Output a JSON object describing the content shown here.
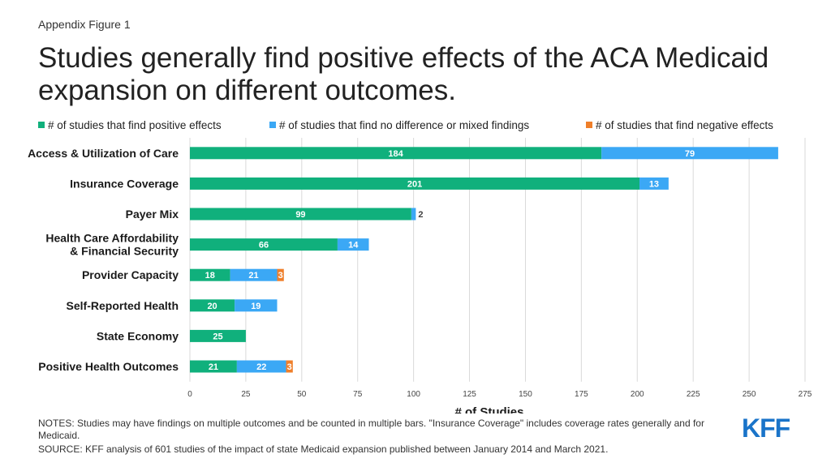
{
  "header": {
    "figure_label": "Appendix Figure 1",
    "title": "Studies generally find positive effects of the ACA Medicaid expansion on different outcomes."
  },
  "footer": {
    "notes": "NOTES: Studies may have findings on multiple outcomes and be counted in multiple bars. \"Insurance  Coverage\" includes coverage rates generally and for Medicaid.",
    "source": "SOURCE: KFF analysis of 601 studies of the impact of state Medicaid expansion published between January 2014 and March 2021.",
    "logo_text": "KFF"
  },
  "colors": {
    "positive": "#10b07c",
    "mixed": "#3ba8f5",
    "negative": "#ef7f2a",
    "grid": "#d9d9d9",
    "logo": "#1a74c9"
  },
  "chart_data": {
    "type": "bar",
    "orientation": "horizontal",
    "stacked": true,
    "categories": [
      "Access & Utilization of Care",
      "Insurance Coverage",
      "Payer Mix",
      "Health Care Affordability & Financial Security",
      "Provider Capacity",
      "Self-Reported Health",
      "State Economy",
      "Positive Health Outcomes"
    ],
    "series": [
      {
        "name": "# of studies that find positive effects",
        "values": [
          184,
          201,
          99,
          66,
          18,
          20,
          25,
          21
        ]
      },
      {
        "name": "# of studies that find no difference or mixed findings",
        "values": [
          79,
          13,
          2,
          14,
          21,
          19,
          0,
          22
        ]
      },
      {
        "name": "# of studies that find negative effects",
        "values": [
          0,
          0,
          0,
          0,
          3,
          0,
          0,
          3
        ]
      }
    ],
    "xlabel": "# of Studies",
    "ylabel": "",
    "xlim": [
      0,
      275
    ],
    "xticks": [
      0,
      25,
      50,
      75,
      100,
      125,
      150,
      175,
      200,
      225,
      250,
      275
    ],
    "grid": "vertical",
    "legend_position": "top"
  }
}
